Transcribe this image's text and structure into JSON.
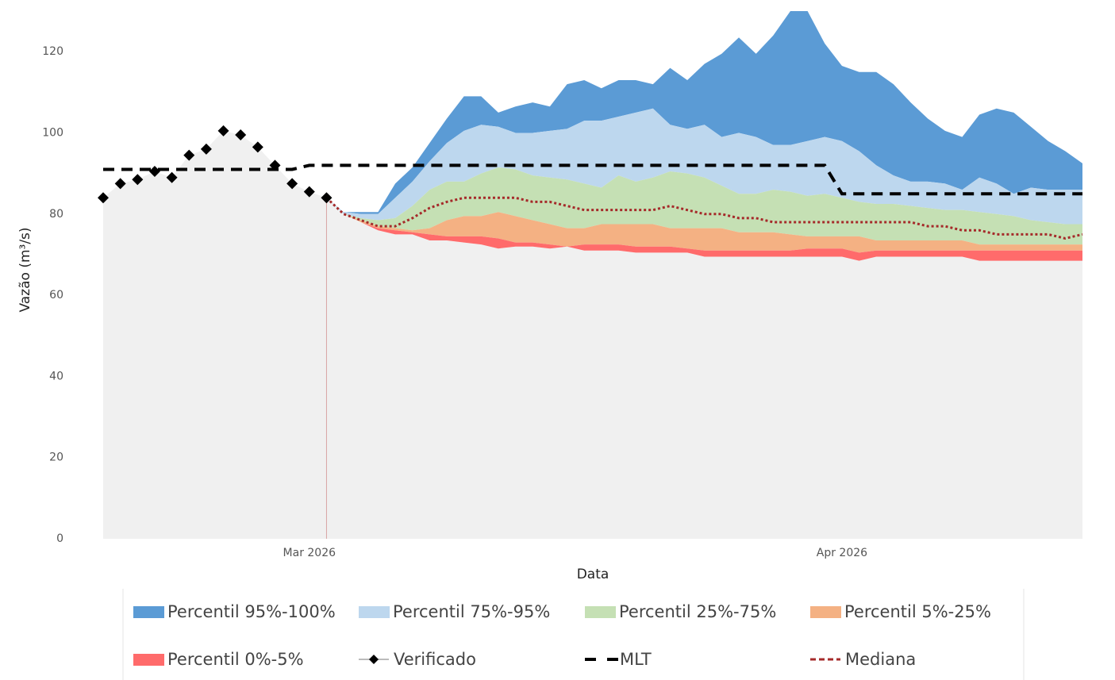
{
  "chart_data": {
    "type": "area",
    "x_label": "Data",
    "y_label": "Vazão (m³/s)",
    "categories": [
      null,
      null,
      null,
      null,
      null,
      null,
      null,
      null,
      null,
      null,
      null,
      null,
      "Mar 2026",
      null,
      null,
      null,
      null,
      null,
      null,
      null,
      null,
      null,
      null,
      null,
      null,
      null,
      null,
      null,
      null,
      null,
      null,
      null,
      null,
      null,
      null,
      null,
      null,
      null,
      null,
      null,
      null,
      null,
      null,
      "Apr 2026",
      null,
      null,
      null,
      null,
      null,
      null,
      null,
      null,
      null,
      null,
      null,
      null,
      null,
      null
    ],
    "ylim": [
      0,
      130
    ],
    "yticks": [
      0,
      20,
      40,
      60,
      80,
      100,
      120
    ],
    "grid": false,
    "base_color": "#f0f0f0",
    "series": [
      {
        "name": "Percentil 95%-100%",
        "kind": "band",
        "color": "#5b9bd5",
        "low": [
          null,
          null,
          null,
          null,
          null,
          null,
          null,
          null,
          null,
          null,
          null,
          null,
          null,
          84,
          80.5,
          80,
          80,
          84,
          88,
          93,
          97.5,
          100.5,
          102,
          101.5,
          100,
          100,
          100.5,
          101,
          103,
          103,
          104,
          105,
          106,
          102,
          101,
          102,
          99,
          100,
          99,
          97,
          97,
          98,
          99,
          98,
          95.5,
          92,
          89.5,
          88,
          88,
          87.5,
          86,
          89,
          87.5,
          85,
          86.5,
          86,
          86,
          86
        ],
        "high": [
          null,
          null,
          null,
          null,
          null,
          null,
          null,
          null,
          null,
          null,
          null,
          null,
          null,
          84,
          80.5,
          80.5,
          80.5,
          87.5,
          91.5,
          97.5,
          103.5,
          109,
          109,
          105,
          106.5,
          107.5,
          106.5,
          112,
          113,
          111,
          113,
          113,
          112,
          116,
          113,
          117,
          119.5,
          123.5,
          119.5,
          124,
          130,
          130,
          122,
          116.5,
          115,
          115,
          112,
          107.5,
          103.5,
          100.5,
          99,
          104.5,
          106,
          105,
          101.5,
          98,
          95.5,
          92.5
        ]
      },
      {
        "name": "Percentil 75%-95%",
        "kind": "band",
        "color": "#bdd7ee",
        "low": [
          null,
          null,
          null,
          null,
          null,
          null,
          null,
          null,
          null,
          null,
          null,
          null,
          null,
          84,
          80,
          79,
          78.5,
          79,
          82,
          86,
          88,
          88,
          90,
          91.5,
          91,
          89.5,
          89,
          88.5,
          87.5,
          86.5,
          89.5,
          88,
          89,
          90.5,
          90,
          89,
          87,
          85,
          85,
          86,
          85.5,
          84.5,
          85,
          84,
          83,
          82.5,
          82.5,
          82,
          81.5,
          81,
          81,
          80.5,
          80,
          79.5,
          78.5,
          78,
          77.5,
          77.5
        ],
        "high": [
          null,
          null,
          null,
          null,
          null,
          null,
          null,
          null,
          null,
          null,
          null,
          null,
          null,
          84,
          80.5,
          80,
          80,
          84,
          88,
          93,
          97.5,
          100.5,
          102,
          101.5,
          100,
          100,
          100.5,
          101,
          103,
          103,
          104,
          105,
          106,
          102,
          101,
          102,
          99,
          100,
          99,
          97,
          97,
          98,
          99,
          98,
          95.5,
          92,
          89.5,
          88,
          88,
          87.5,
          86,
          89,
          87.5,
          85,
          86.5,
          86,
          86,
          86
        ]
      },
      {
        "name": "Percentil 25%-75%",
        "kind": "band",
        "color": "#c5e0b4",
        "low": [
          null,
          null,
          null,
          null,
          null,
          null,
          null,
          null,
          null,
          null,
          null,
          null,
          null,
          84,
          80,
          78.5,
          77,
          76.5,
          76,
          76.5,
          78.5,
          79.5,
          79.5,
          80.5,
          79.5,
          78.5,
          77.5,
          76.5,
          76.5,
          77.5,
          77.5,
          77.5,
          77.5,
          76.5,
          76.5,
          76.5,
          76.5,
          75.5,
          75.5,
          75.5,
          75,
          74.5,
          74.5,
          74.5,
          74.5,
          73.5,
          73.5,
          73.5,
          73.5,
          73.5,
          73.5,
          72.5,
          72.5,
          72.5,
          72.5,
          72.5,
          72.5,
          72.5
        ],
        "high": [
          null,
          null,
          null,
          null,
          null,
          null,
          null,
          null,
          null,
          null,
          null,
          null,
          null,
          84,
          80,
          79,
          78.5,
          79,
          82,
          86,
          88,
          88,
          90,
          91.5,
          91,
          89.5,
          89,
          88.5,
          87.5,
          86.5,
          89.5,
          88,
          89,
          90.5,
          90,
          89,
          87,
          85,
          85,
          86,
          85.5,
          84.5,
          85,
          84,
          83,
          82.5,
          82.5,
          82,
          81.5,
          81,
          81,
          80.5,
          80,
          79.5,
          78.5,
          78,
          77.5,
          77.5
        ]
      },
      {
        "name": "Percentil 5%-25%",
        "kind": "band",
        "color": "#f4b183",
        "low": [
          null,
          null,
          null,
          null,
          null,
          null,
          null,
          null,
          null,
          null,
          null,
          null,
          null,
          84,
          80,
          78,
          76.5,
          76,
          75.5,
          75,
          74.5,
          74.5,
          74.5,
          74,
          73,
          73,
          72.5,
          72,
          72.5,
          72.5,
          72.5,
          72,
          72,
          72,
          71.5,
          71,
          71,
          71,
          71,
          71,
          71,
          71.5,
          71.5,
          71.5,
          70.5,
          71,
          71,
          71,
          71,
          71,
          71,
          71,
          71,
          71,
          71,
          71,
          71,
          71
        ],
        "high": [
          null,
          null,
          null,
          null,
          null,
          null,
          null,
          null,
          null,
          null,
          null,
          null,
          null,
          84,
          80,
          78.5,
          77,
          76.5,
          76,
          76.5,
          78.5,
          79.5,
          79.5,
          80.5,
          79.5,
          78.5,
          77.5,
          76.5,
          76.5,
          77.5,
          77.5,
          77.5,
          77.5,
          76.5,
          76.5,
          76.5,
          76.5,
          75.5,
          75.5,
          75.5,
          75,
          74.5,
          74.5,
          74.5,
          74.5,
          73.5,
          73.5,
          73.5,
          73.5,
          73.5,
          73.5,
          72.5,
          72.5,
          72.5,
          72.5,
          72.5,
          72.5,
          72.5
        ]
      },
      {
        "name": "Percentil 0%-5%",
        "kind": "band",
        "color": "#ff6b6b",
        "low": [
          null,
          null,
          null,
          null,
          null,
          null,
          null,
          null,
          null,
          null,
          null,
          null,
          null,
          84,
          80,
          78,
          76,
          75,
          75,
          73.5,
          73.5,
          73,
          72.5,
          71.5,
          72,
          72,
          71.5,
          72,
          71,
          71,
          71,
          70.5,
          70.5,
          70.5,
          70.5,
          69.5,
          69.5,
          69.5,
          69.5,
          69.5,
          69.5,
          69.5,
          69.5,
          69.5,
          68.5,
          69.5,
          69.5,
          69.5,
          69.5,
          69.5,
          69.5,
          68.5,
          68.5,
          68.5,
          68.5,
          68.5,
          68.5,
          68.5
        ],
        "high": [
          null,
          null,
          null,
          null,
          null,
          null,
          null,
          null,
          null,
          null,
          null,
          null,
          null,
          84,
          80,
          78,
          76.5,
          76,
          75.5,
          75,
          74.5,
          74.5,
          74.5,
          74,
          73,
          73,
          72.5,
          72,
          72.5,
          72.5,
          72.5,
          72,
          72,
          72,
          71.5,
          71,
          71,
          71,
          71,
          71,
          71,
          71.5,
          71.5,
          71.5,
          70.5,
          71,
          71,
          71,
          71,
          71,
          71,
          71,
          71,
          71,
          71,
          71,
          71,
          71
        ]
      },
      {
        "name": "Verificado",
        "kind": "markers",
        "color": "#000000",
        "values": [
          84,
          87.5,
          88.5,
          90.5,
          89,
          94.5,
          96,
          100.5,
          99.5,
          96.5,
          92,
          87.5,
          85.5,
          84,
          null,
          null,
          null,
          null,
          null,
          null,
          null,
          null,
          null,
          null,
          null,
          null,
          null,
          null,
          null,
          null,
          null,
          null,
          null,
          null,
          null,
          null,
          null,
          null,
          null,
          null,
          null,
          null,
          null,
          null,
          null,
          null,
          null,
          null,
          null,
          null,
          null,
          null,
          null,
          null,
          null,
          null,
          null,
          null
        ]
      },
      {
        "name": "MLT",
        "kind": "dashed",
        "color": "#000000",
        "values": [
          91,
          91,
          91,
          91,
          91,
          91,
          91,
          91,
          91,
          91,
          91,
          91,
          92,
          92,
          92,
          92,
          92,
          92,
          92,
          92,
          92,
          92,
          92,
          92,
          92,
          92,
          92,
          92,
          92,
          92,
          92,
          92,
          92,
          92,
          92,
          92,
          92,
          92,
          92,
          92,
          92,
          92,
          92,
          85,
          85,
          85,
          85,
          85,
          85,
          85,
          85,
          85,
          85,
          85,
          85,
          85,
          85,
          85
        ]
      },
      {
        "name": "Mediana",
        "kind": "dotted",
        "color": "#a52a2a",
        "values": [
          null,
          null,
          null,
          null,
          null,
          null,
          null,
          null,
          null,
          null,
          null,
          null,
          null,
          84,
          80,
          78.5,
          77,
          77,
          79,
          81.5,
          83,
          84,
          84,
          84,
          84,
          83,
          83,
          82,
          81,
          81,
          81,
          81,
          81,
          82,
          81,
          80,
          80,
          79,
          79,
          78,
          78,
          78,
          78,
          78,
          78,
          78,
          78,
          78,
          77,
          77,
          76,
          76,
          75,
          75,
          75,
          75,
          74,
          75
        ]
      }
    ]
  }
}
